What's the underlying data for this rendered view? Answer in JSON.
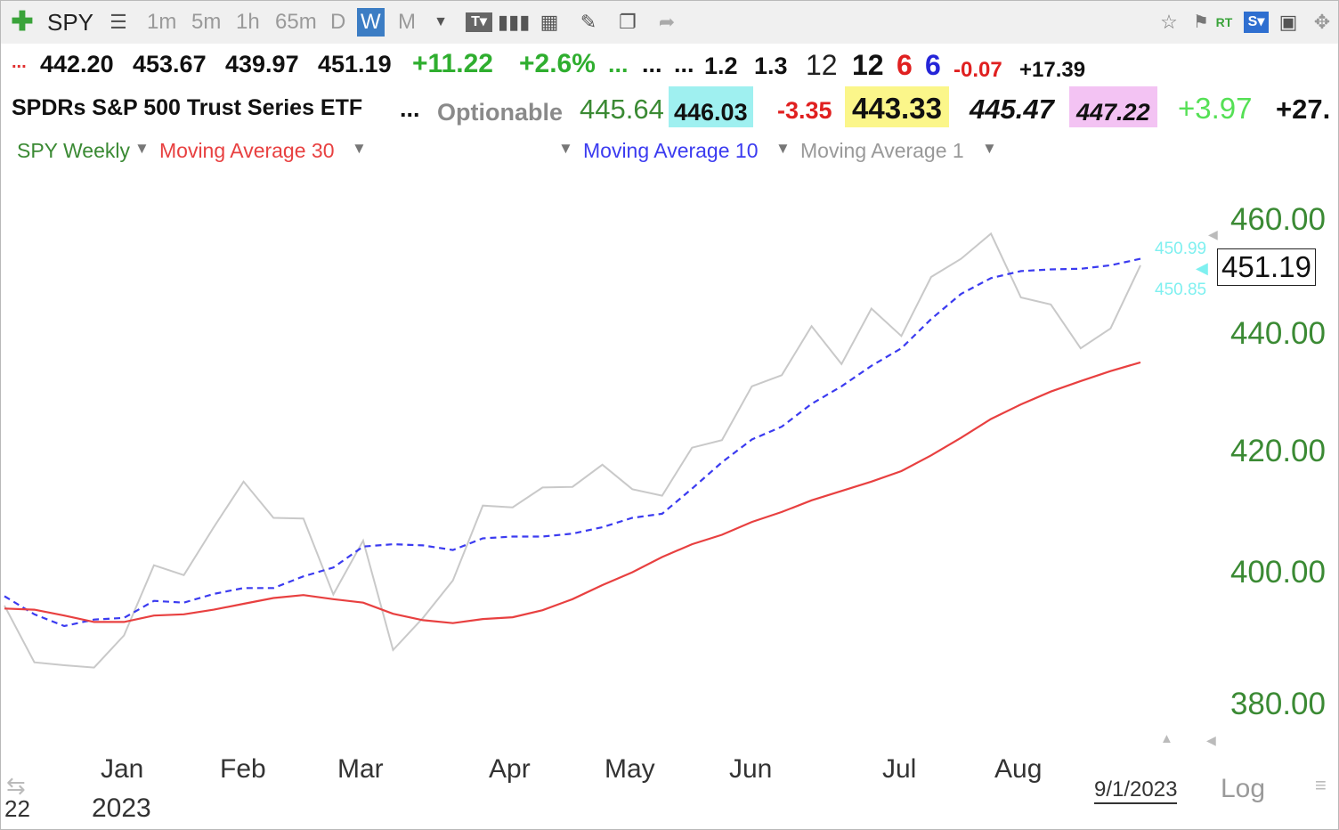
{
  "toolbar": {
    "symbol": "SPY",
    "intervals": [
      "1m",
      "5m",
      "1h",
      "65m",
      "D",
      "W",
      "M"
    ],
    "active_interval": "W"
  },
  "quote_row1": {
    "lead": "...",
    "open": "442.20",
    "high": "453.67",
    "low": "439.97",
    "last": "451.19",
    "change": "+11.22",
    "change_pct": "+2.6%",
    "dots1": "...",
    "dots2": "...",
    "dots3": "...",
    "v1": "1.2",
    "v2": "1.3",
    "v3": "12",
    "v4": "12",
    "v5": "6",
    "v6": "6",
    "v7": "-0.07",
    "v8": "+17.39"
  },
  "quote_row2": {
    "name": "SPDRs S&P 500 Trust Series ETF",
    "dots": "...",
    "optionable": "Optionable",
    "p1": "445.64",
    "p2": "446.03",
    "p3": "-3.35",
    "p4": "443.33",
    "p5": "445.47",
    "p6": "447.22",
    "p7": "+3.97",
    "p8": "+27."
  },
  "legend": {
    "price": "SPY Weekly",
    "ma30": "Moving Average 30",
    "ma10": "Moving Average 10",
    "ma1": "Moving Average 1"
  },
  "colors": {
    "price": "#c9c9c9",
    "ma30": "#e84040",
    "ma10": "#3b3bf0",
    "axis_labels": "#3b8a34",
    "marker": "#7ff0f0",
    "legend_price": "#3b8a34",
    "legend_ma30": "#e84040",
    "legend_ma10": "#3b3bf0",
    "legend_ma1": "#999999"
  },
  "chart_data": {
    "type": "line",
    "x_labels": [
      "Jan",
      "Feb",
      "Mar",
      "Apr",
      "May",
      "Jun",
      "Jul",
      "Aug"
    ],
    "year_label": "2023",
    "left_edge_label": "22",
    "date_label": "9/1/2023",
    "scale_label": "Log",
    "y_ticks": [
      "460.00",
      "440.00",
      "420.00",
      "400.00",
      "380.00"
    ],
    "ylim": [
      370,
      469
    ],
    "last_price_label": "451.19",
    "marker_upper": "450.99",
    "marker_lower": "450.85",
    "series": [
      {
        "values": [
          393.0,
          383.3,
          382.8,
          382.4,
          387.9,
          399.9,
          398.2,
          406.4,
          414.2,
          408.0,
          407.9,
          394.9,
          404.1,
          385.4,
          390.9,
          397.3,
          410.1,
          409.8,
          413.2,
          413.3,
          417.1,
          412.9,
          411.8,
          420.0,
          421.3,
          430.5,
          432.4,
          440.8,
          434.3,
          443.8,
          439.1,
          449.2,
          452.3,
          456.6,
          445.7,
          444.5,
          437.0,
          440.4,
          451.19
        ]
      },
      {
        "values": [
          394.6,
          391.5,
          389.5,
          390.6,
          390.9,
          393.8,
          393.5,
          395.0,
          396.0,
          396.0,
          398.0,
          399.5,
          403.1,
          403.5,
          403.3,
          402.5,
          404.5,
          404.8,
          404.8,
          405.3,
          406.4,
          408.0,
          408.7,
          413.0,
          417.5,
          421.4,
          423.6,
          427.5,
          430.5,
          434.0,
          437.0,
          442.0,
          446.3,
          449.0,
          450.2,
          450.5,
          450.6,
          451.2,
          452.3
        ]
      },
      {
        "values": [
          392.5,
          392.3,
          391.3,
          390.2,
          390.2,
          391.3,
          391.5,
          392.3,
          393.3,
          394.3,
          394.8,
          394.1,
          393.5,
          391.6,
          390.5,
          390.0,
          390.7,
          391.0,
          392.2,
          394.1,
          396.5,
          398.7,
          401.3,
          403.5,
          405.1,
          407.3,
          409.0,
          411.0,
          412.6,
          414.2,
          416.0,
          418.7,
          421.7,
          424.9,
          427.4,
          429.6,
          431.4,
          433.1,
          434.6
        ]
      }
    ]
  }
}
